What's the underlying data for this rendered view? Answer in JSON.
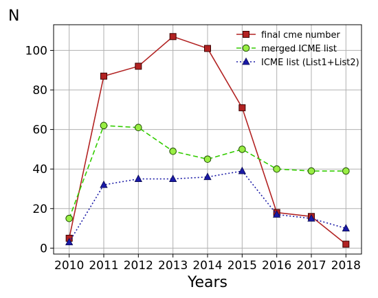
{
  "chart_data": {
    "type": "line",
    "title": "",
    "xlabel": "Years",
    "ylabel": "N",
    "x": [
      2010,
      2011,
      2012,
      2013,
      2014,
      2015,
      2016,
      2017,
      2018
    ],
    "xlim": [
      2009.55,
      2018.45
    ],
    "ylim": [
      -3,
      113
    ],
    "yticks": [
      0,
      20,
      40,
      60,
      80,
      100
    ],
    "grid": true,
    "legend_position": "top-right",
    "series": [
      {
        "name": "final cme number",
        "values": [
          5,
          87,
          92,
          107,
          101,
          71,
          18,
          16,
          2
        ],
        "color": "#b22222",
        "marker": "square",
        "linestyle": "solid"
      },
      {
        "name": "merged ICME list",
        "values": [
          15,
          62,
          61,
          49,
          45,
          50,
          40,
          39,
          39
        ],
        "color": "#33cc00",
        "marker_fill": "#99ee44",
        "marker": "circle",
        "linestyle": "dashed"
      },
      {
        "name": "ICME list (List1+List2)",
        "values": [
          3,
          32,
          35,
          35,
          36,
          39,
          17,
          15,
          10
        ],
        "color": "#1a1aa6",
        "marker": "triangle",
        "linestyle": "dotted"
      }
    ]
  }
}
